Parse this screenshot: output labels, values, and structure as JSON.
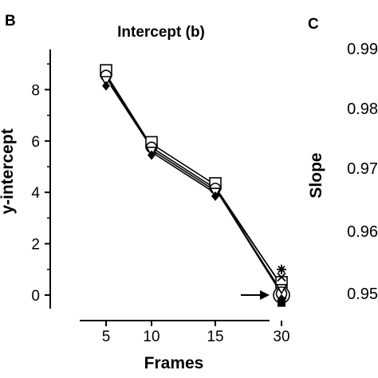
{
  "panel_b_letter": "B",
  "panel_c_letter": "C",
  "chart_data": [
    {
      "type": "line",
      "title": "Intercept (b)",
      "xlabel": "Frames",
      "ylabel": "y-intercept",
      "categories": [
        "5",
        "10",
        "15",
        "30"
      ],
      "ylim": [
        -0.6,
        9.3
      ],
      "yticks": [
        "0",
        "2",
        "4",
        "6",
        "8"
      ],
      "yticks_values": [
        0,
        2,
        4,
        6,
        8
      ],
      "grid": false,
      "series": [
        {
          "marker": "square-open",
          "values": [
            8.75,
            5.95,
            4.35,
            0.5
          ]
        },
        {
          "marker": "circle-open",
          "values": [
            8.55,
            5.75,
            4.15,
            0.05
          ]
        },
        {
          "marker": "triangle-down-open",
          "values": [
            8.35,
            5.6,
            4.0,
            0.25
          ]
        },
        {
          "marker": "diamond-filled",
          "values": [
            8.15,
            5.45,
            3.85,
            -0.15
          ]
        }
      ],
      "extra_markers_at_30": [
        "asterisk",
        "cross",
        "filled-square"
      ],
      "annotation": "arrow pointing to the value at 30 frames"
    },
    {
      "type": "line",
      "ylabel": "Slope",
      "yticks": [
        "0.99",
        "0.98",
        "0.97",
        "0.96",
        "0.95"
      ],
      "yticks_values": [
        0.99,
        0.98,
        0.97,
        0.96,
        0.95
      ]
    }
  ]
}
